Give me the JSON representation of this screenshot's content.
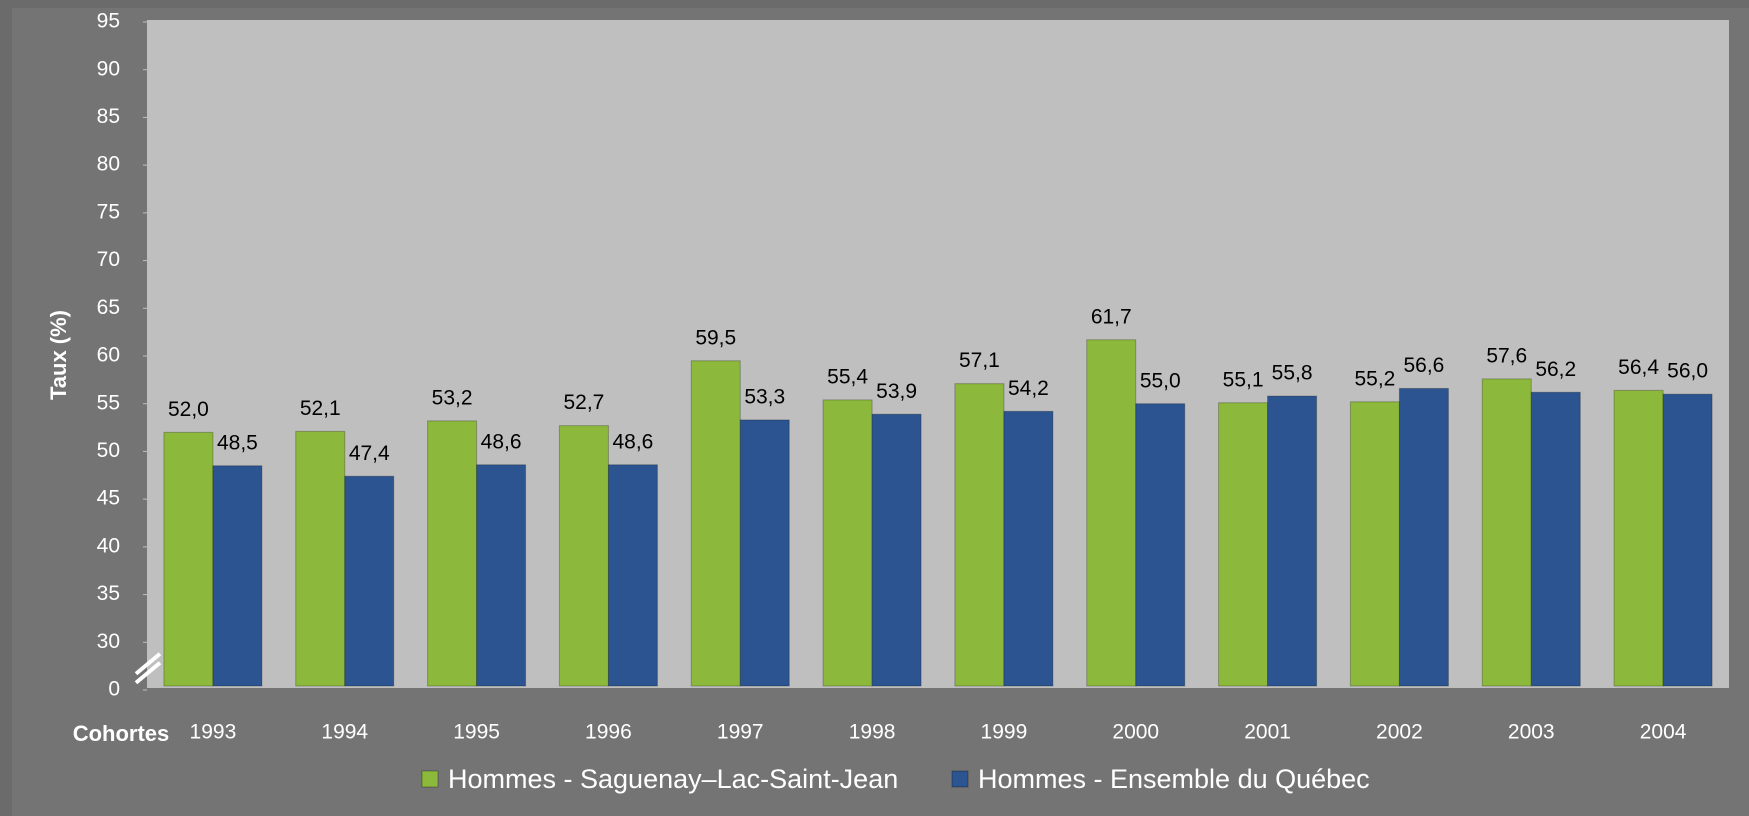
{
  "chart_data": {
    "type": "bar",
    "y_label": "Taux (%)",
    "x_label": "Cohortes",
    "categories": [
      "1993",
      "1994",
      "1995",
      "1996",
      "1997",
      "1998",
      "1999",
      "2000",
      "2001",
      "2002",
      "2003",
      "2004"
    ],
    "series": [
      {
        "name": "Hommes - Saguenay–Lac-Saint-Jean",
        "color": "#8cb83c",
        "values": [
          52.0,
          52.1,
          53.2,
          52.7,
          59.5,
          55.4,
          57.1,
          61.7,
          55.1,
          55.2,
          57.6,
          56.4
        ],
        "value_labels": [
          "52,0",
          "52,1",
          "53,2",
          "52,7",
          "59,5",
          "55,4",
          "57,1",
          "61,7",
          "55,1",
          "55,2",
          "57,6",
          "56,4"
        ]
      },
      {
        "name": "Hommes - Ensemble du Québec",
        "color": "#2c5490",
        "values": [
          48.5,
          47.4,
          48.6,
          48.6,
          53.3,
          53.9,
          54.2,
          55.0,
          55.8,
          56.6,
          56.2,
          56.0
        ],
        "value_labels": [
          "48,5",
          "47,4",
          "48,6",
          "48,6",
          "53,3",
          "53,9",
          "54,2",
          "55,0",
          "55,8",
          "56,6",
          "56,2",
          "56,0"
        ]
      }
    ],
    "ylim": [
      0,
      95
    ],
    "yticks": [
      0,
      30,
      35,
      40,
      45,
      50,
      55,
      60,
      65,
      70,
      75,
      80,
      85,
      90,
      95
    ],
    "axis_break": true,
    "legend": "bottom"
  }
}
